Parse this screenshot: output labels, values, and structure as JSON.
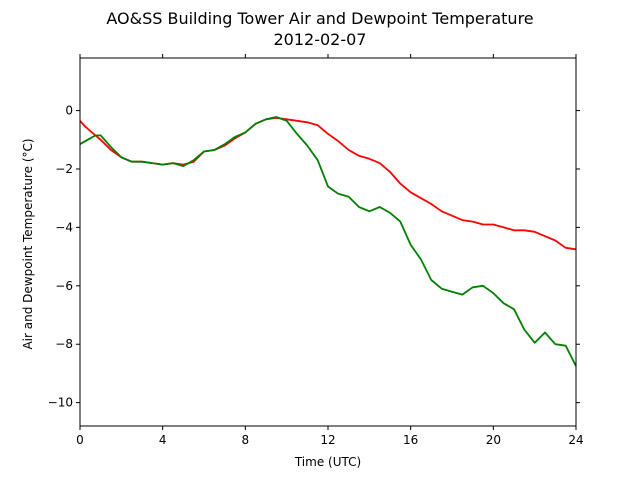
{
  "chart_data": {
    "type": "line",
    "title": "AO&SS Building Tower Air and Dewpoint Temperature",
    "subtitle": "2012-02-07",
    "xlabel": "Time (UTC)",
    "ylabel": "Air and Dewpoint Temperature (°C)",
    "xlim": [
      0,
      24
    ],
    "ylim": [
      -10.8,
      1.8
    ],
    "xticks": [
      0,
      4,
      8,
      12,
      16,
      20,
      24
    ],
    "yticks": [
      0,
      -2,
      -4,
      -6,
      -8,
      -10
    ],
    "grid": false,
    "legend": "none",
    "series": [
      {
        "color": "#ff0000",
        "x": [
          0,
          0.25,
          0.5,
          0.75,
          1.0,
          1.5,
          2.0,
          2.5,
          3.0,
          3.5,
          4.0,
          4.5,
          5.0,
          5.5,
          6.0,
          6.5,
          7.0,
          7.5,
          8.0,
          8.5,
          9.0,
          9.5,
          10.0,
          10.5,
          11.0,
          11.5,
          12.0,
          12.5,
          13.0,
          13.5,
          14.0,
          14.5,
          15.0,
          15.5,
          16.0,
          16.5,
          17.0,
          17.5,
          18.0,
          18.5,
          19.0,
          19.5,
          20.0,
          20.5,
          21.0,
          21.5,
          22.0,
          22.5,
          23.0,
          23.5,
          24.0
        ],
        "y": [
          -0.35,
          -0.55,
          -0.7,
          -0.85,
          -1.0,
          -1.35,
          -1.6,
          -1.75,
          -1.75,
          -1.8,
          -1.85,
          -1.8,
          -1.85,
          -1.75,
          -1.4,
          -1.35,
          -1.2,
          -0.95,
          -0.75,
          -0.45,
          -0.3,
          -0.25,
          -0.3,
          -0.35,
          -0.4,
          -0.5,
          -0.8,
          -1.05,
          -1.35,
          -1.55,
          -1.65,
          -1.8,
          -2.1,
          -2.5,
          -2.8,
          -3.0,
          -3.2,
          -3.45,
          -3.6,
          -3.75,
          -3.8,
          -3.9,
          -3.9,
          -4.0,
          -4.1,
          -4.1,
          -4.15,
          -4.3,
          -4.45,
          -4.7,
          -4.75
        ]
      },
      {
        "color": "#008000",
        "x": [
          0,
          0.25,
          0.5,
          0.75,
          1.0,
          1.5,
          2.0,
          2.5,
          3.0,
          3.5,
          4.0,
          4.5,
          5.0,
          5.5,
          6.0,
          6.5,
          7.0,
          7.5,
          8.0,
          8.5,
          9.0,
          9.5,
          10.0,
          10.5,
          11.0,
          11.5,
          12.0,
          12.5,
          13.0,
          13.5,
          14.0,
          14.5,
          15.0,
          15.5,
          16.0,
          16.5,
          17.0,
          17.5,
          18.0,
          18.5,
          19.0,
          19.5,
          20.0,
          20.5,
          21.0,
          21.5,
          22.0,
          22.5,
          23.0,
          23.5,
          24.0
        ],
        "y": [
          -1.15,
          -1.05,
          -0.95,
          -0.85,
          -0.85,
          -1.25,
          -1.6,
          -1.75,
          -1.75,
          -1.8,
          -1.85,
          -1.8,
          -1.9,
          -1.7,
          -1.4,
          -1.35,
          -1.15,
          -0.9,
          -0.75,
          -0.45,
          -0.3,
          -0.22,
          -0.35,
          -0.8,
          -1.2,
          -1.7,
          -2.6,
          -2.85,
          -2.95,
          -3.3,
          -3.45,
          -3.3,
          -3.5,
          -3.8,
          -4.6,
          -5.1,
          -5.8,
          -6.1,
          -6.2,
          -6.3,
          -6.05,
          -6.0,
          -6.25,
          -6.6,
          -6.8,
          -7.5,
          -7.95,
          -7.6,
          -8.0,
          -8.05,
          -8.75
        ]
      }
    ]
  }
}
